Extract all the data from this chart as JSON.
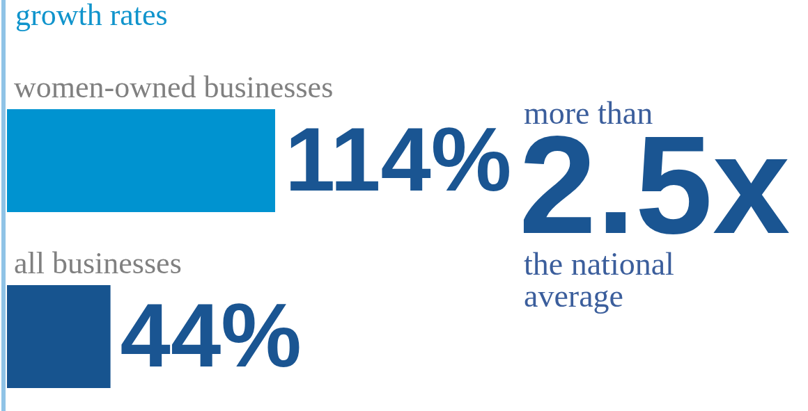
{
  "chart_data": {
    "type": "bar",
    "orientation": "horizontal",
    "title": "growth rates",
    "categories": [
      "women-owned businesses",
      "all businesses"
    ],
    "values": [
      114,
      44
    ],
    "colors": [
      "#0093d0",
      "#17548f"
    ],
    "value_labels": [
      "114%",
      "44%"
    ],
    "annotations": [
      "more than",
      "2.5x",
      "the national average"
    ]
  }
}
